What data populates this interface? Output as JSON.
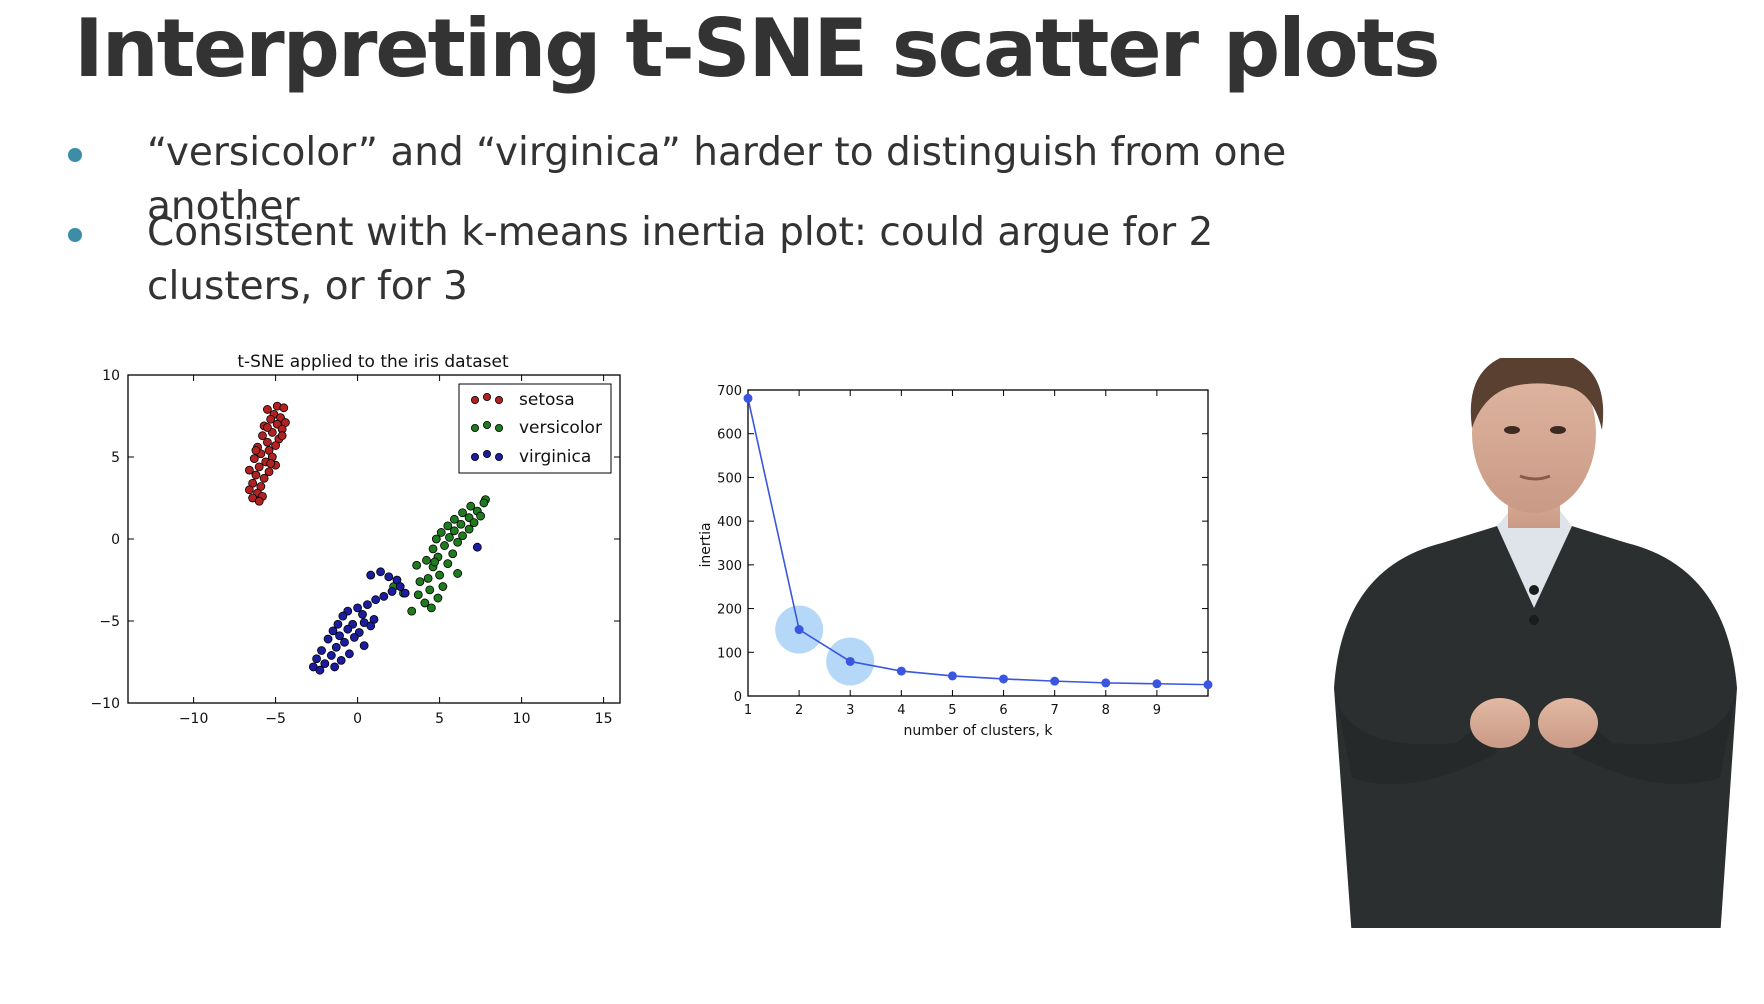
{
  "slide": {
    "title": "Interpreting t-SNE scatter plots",
    "bullets": [
      "“versicolor” and “virginica” harder to distinguish from one another",
      "Consistent with k-means inertia plot: could argue for 2 clusters, or for 3"
    ],
    "bullet_color": "#3b8ea5"
  },
  "chart_data": [
    {
      "type": "scatter",
      "title": "t-SNE applied to the iris dataset",
      "xlabel": "",
      "ylabel": "",
      "xlim": [
        -14,
        16
      ],
      "ylim": [
        -10,
        10
      ],
      "xticks": [
        -10,
        -5,
        0,
        5,
        10,
        15
      ],
      "xtick_labels": [
        "−10",
        "−5",
        "0",
        "5",
        "10",
        "15"
      ],
      "yticks": [
        -10,
        -5,
        0,
        5,
        10
      ],
      "ytick_labels": [
        "−10",
        "−5",
        "0",
        "5",
        "10"
      ],
      "grid": false,
      "legend": "top-right",
      "series": [
        {
          "name": "setosa",
          "color": "#b22222",
          "points": [
            [
              -4.9,
              8.1
            ],
            [
              -4.5,
              8.0
            ],
            [
              -5.5,
              7.9
            ],
            [
              -5.1,
              7.6
            ],
            [
              -4.7,
              7.4
            ],
            [
              -5.3,
              7.3
            ],
            [
              -4.4,
              7.1
            ],
            [
              -4.9,
              7.0
            ],
            [
              -5.7,
              6.9
            ],
            [
              -4.6,
              6.7
            ],
            [
              -5.2,
              6.5
            ],
            [
              -5.8,
              6.3
            ],
            [
              -4.8,
              6.1
            ],
            [
              -5.5,
              5.9
            ],
            [
              -5.0,
              5.7
            ],
            [
              -6.1,
              5.6
            ],
            [
              -5.4,
              5.4
            ],
            [
              -5.9,
              5.2
            ],
            [
              -5.2,
              5.0
            ],
            [
              -6.3,
              4.9
            ],
            [
              -5.6,
              4.7
            ],
            [
              -5.0,
              4.5
            ],
            [
              -6.0,
              4.4
            ],
            [
              -6.6,
              4.2
            ],
            [
              -5.4,
              4.1
            ],
            [
              -6.2,
              3.9
            ],
            [
              -5.7,
              3.7
            ],
            [
              -6.4,
              3.4
            ],
            [
              -5.9,
              3.2
            ],
            [
              -6.6,
              3.0
            ],
            [
              -6.1,
              2.8
            ],
            [
              -5.8,
              2.6
            ],
            [
              -6.4,
              2.5
            ],
            [
              -6.0,
              2.3
            ],
            [
              -5.3,
              4.6
            ],
            [
              -4.6,
              6.3
            ],
            [
              -5.5,
              6.8
            ],
            [
              -6.2,
              5.4
            ]
          ]
        },
        {
          "name": "versicolor",
          "color": "#1e7b1e",
          "points": [
            [
              7.8,
              2.4
            ],
            [
              7.7,
              2.2
            ],
            [
              6.9,
              2.0
            ],
            [
              7.3,
              1.7
            ],
            [
              6.4,
              1.6
            ],
            [
              7.5,
              1.4
            ],
            [
              6.8,
              1.3
            ],
            [
              5.9,
              1.2
            ],
            [
              7.1,
              1.0
            ],
            [
              6.3,
              0.9
            ],
            [
              5.5,
              0.8
            ],
            [
              6.8,
              0.6
            ],
            [
              5.9,
              0.5
            ],
            [
              5.1,
              0.4
            ],
            [
              6.4,
              0.2
            ],
            [
              5.6,
              0.1
            ],
            [
              4.8,
              0.0
            ],
            [
              6.1,
              -0.2
            ],
            [
              5.3,
              -0.4
            ],
            [
              4.6,
              -0.6
            ],
            [
              5.8,
              -0.9
            ],
            [
              4.9,
              -1.1
            ],
            [
              4.2,
              -1.3
            ],
            [
              5.5,
              -1.5
            ],
            [
              4.6,
              -1.7
            ],
            [
              3.6,
              -1.6
            ],
            [
              6.1,
              -2.1
            ],
            [
              5.0,
              -2.2
            ],
            [
              4.3,
              -2.4
            ],
            [
              3.8,
              -2.6
            ],
            [
              5.2,
              -2.9
            ],
            [
              4.4,
              -3.1
            ],
            [
              3.7,
              -3.4
            ],
            [
              4.9,
              -3.6
            ],
            [
              4.1,
              -3.9
            ],
            [
              4.5,
              -4.2
            ],
            [
              3.3,
              -4.4
            ],
            [
              2.8,
              -3.3
            ],
            [
              2.2,
              -2.9
            ],
            [
              4.7,
              -1.4
            ]
          ]
        },
        {
          "name": "virginica",
          "color": "#1c1ca0",
          "points": [
            [
              7.3,
              -0.5
            ],
            [
              0.8,
              -2.2
            ],
            [
              1.4,
              -2.0
            ],
            [
              1.9,
              -2.3
            ],
            [
              2.4,
              -2.5
            ],
            [
              2.6,
              -2.9
            ],
            [
              2.1,
              -3.2
            ],
            [
              2.9,
              -3.3
            ],
            [
              1.6,
              -3.5
            ],
            [
              1.1,
              -3.7
            ],
            [
              0.6,
              -4.0
            ],
            [
              0.0,
              -4.2
            ],
            [
              -0.6,
              -4.4
            ],
            [
              0.3,
              -4.6
            ],
            [
              -0.9,
              -4.7
            ],
            [
              1.0,
              -4.9
            ],
            [
              0.4,
              -5.1
            ],
            [
              -0.3,
              -5.2
            ],
            [
              -1.2,
              -5.2
            ],
            [
              0.8,
              -5.3
            ],
            [
              -0.6,
              -5.5
            ],
            [
              -1.5,
              -5.6
            ],
            [
              0.1,
              -5.7
            ],
            [
              -1.1,
              -5.9
            ],
            [
              -0.2,
              -6.0
            ],
            [
              -1.8,
              -6.1
            ],
            [
              -0.8,
              -6.3
            ],
            [
              0.4,
              -6.5
            ],
            [
              -1.3,
              -6.6
            ],
            [
              -2.2,
              -6.8
            ],
            [
              -0.5,
              -7.0
            ],
            [
              -1.6,
              -7.1
            ],
            [
              -2.5,
              -7.3
            ],
            [
              -1.0,
              -7.4
            ],
            [
              -2.0,
              -7.6
            ],
            [
              -2.7,
              -7.8
            ],
            [
              -1.4,
              -7.8
            ],
            [
              -2.3,
              -8.0
            ]
          ]
        }
      ]
    },
    {
      "type": "line",
      "title": "",
      "xlabel": "number of clusters, k",
      "ylabel": "inertia",
      "xlim": [
        1,
        10
      ],
      "ylim": [
        0,
        700
      ],
      "xticks": [
        1,
        2,
        3,
        4,
        5,
        6,
        7,
        8,
        9
      ],
      "yticks": [
        0,
        100,
        200,
        300,
        400,
        500,
        600,
        700
      ],
      "grid": false,
      "x": [
        1,
        2,
        3,
        4,
        5,
        6,
        7,
        8,
        9,
        10
      ],
      "series": [
        {
          "color": "#3a56e0",
          "values": [
            681,
            152,
            79,
            57,
            46,
            39,
            34,
            30,
            28,
            26
          ]
        }
      ],
      "highlighted_x": [
        2,
        3
      ],
      "highlight_color": "#a9d1f7"
    }
  ]
}
